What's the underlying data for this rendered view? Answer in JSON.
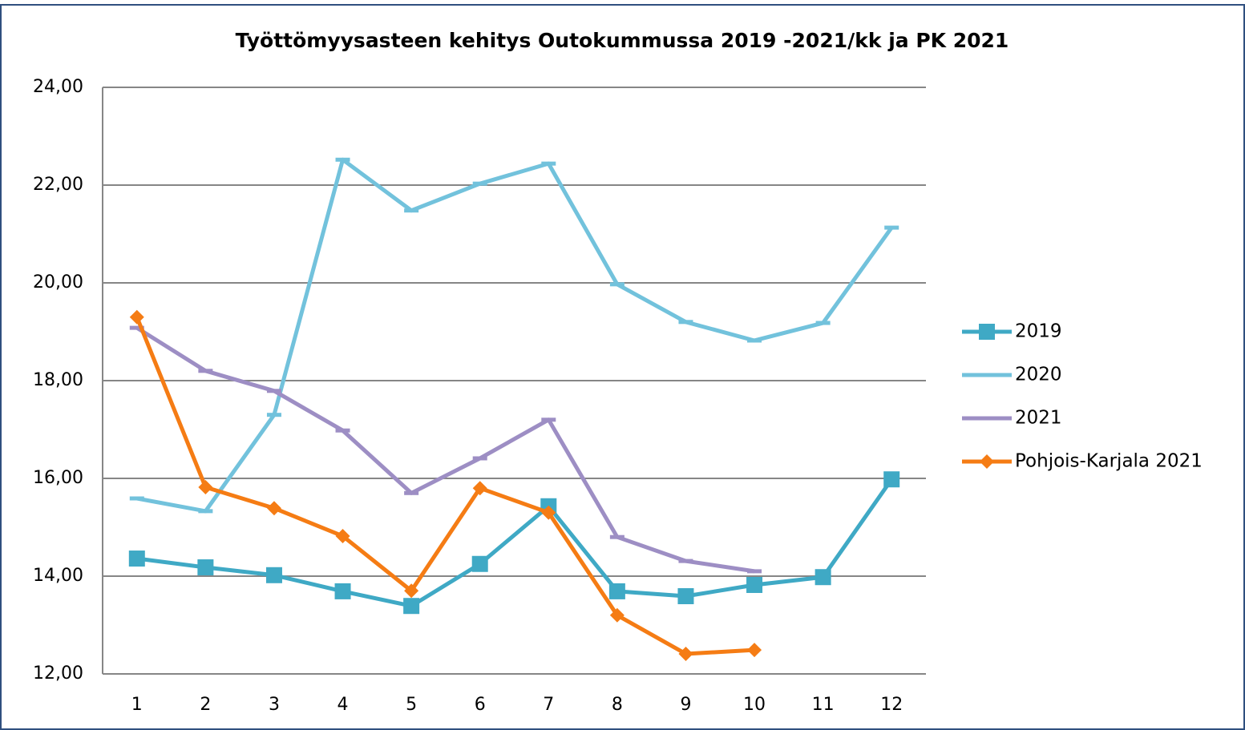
{
  "chart_data": {
    "type": "line",
    "title": "Työttömyysasteen kehitys Outokummussa  2019 -2021/kk ja PK 2021",
    "categories": [
      "1",
      "2",
      "3",
      "4",
      "5",
      "6",
      "7",
      "8",
      "9",
      "10",
      "11",
      "12"
    ],
    "series": [
      {
        "name": "2019",
        "color": "#3fa9c5",
        "marker": "square",
        "values": [
          14.36,
          14.18,
          14.02,
          13.69,
          13.39,
          14.25,
          15.43,
          13.69,
          13.59,
          13.82,
          13.98,
          15.98
        ]
      },
      {
        "name": "2020",
        "color": "#72c2dc",
        "marker": "dash",
        "values": [
          15.59,
          15.33,
          17.3,
          22.52,
          21.48,
          22.03,
          22.44,
          19.97,
          19.2,
          18.82,
          19.18,
          21.13
        ]
      },
      {
        "name": "2021",
        "color": "#9d8ec4",
        "marker": "dash",
        "values": [
          19.08,
          18.2,
          17.79,
          16.98,
          15.7,
          16.41,
          17.2,
          14.8,
          14.31,
          14.1,
          null,
          null
        ]
      },
      {
        "name": "Pohjois-Karjala 2021",
        "color": "#f57c14",
        "marker": "diamond",
        "values": [
          19.3,
          15.82,
          15.39,
          14.82,
          13.7,
          15.8,
          15.3,
          13.2,
          12.41,
          12.49,
          null,
          null
        ]
      }
    ],
    "ylim": [
      12,
      24
    ],
    "yticks": [
      {
        "value": 12,
        "label": "12,00"
      },
      {
        "value": 14,
        "label": "14,00"
      },
      {
        "value": 16,
        "label": "16,00"
      },
      {
        "value": 18,
        "label": "18,00"
      },
      {
        "value": 20,
        "label": "20,00"
      },
      {
        "value": 22,
        "label": "22,00"
      },
      {
        "value": 24,
        "label": "24,00"
      }
    ],
    "grid": true,
    "legend": "right"
  }
}
